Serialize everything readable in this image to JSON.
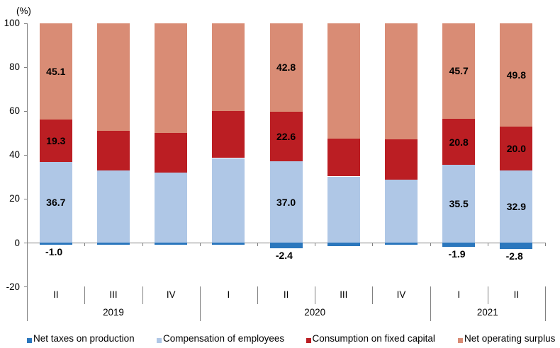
{
  "unit_label": "(%)",
  "colors": {
    "net_taxes": "#2B77BD",
    "compensation": "#AFC7E6",
    "fixed_capital": "#BB1E23",
    "operating_surplus": "#D98C75",
    "axis": "#808080",
    "text": "#000000"
  },
  "chart_data": {
    "type": "bar",
    "stacked": true,
    "title": "",
    "ylabel": "(%)",
    "xlabel": "",
    "ylim": [
      -20,
      100
    ],
    "yticks": [
      -20,
      0,
      20,
      40,
      60,
      80,
      100
    ],
    "legend_position": "bottom",
    "grid": false,
    "year_groups": [
      {
        "label": "2019",
        "quarters": [
          "II",
          "III",
          "IV"
        ]
      },
      {
        "label": "2020",
        "quarters": [
          "I",
          "II",
          "III",
          "IV"
        ]
      },
      {
        "label": "2021",
        "quarters": [
          "I",
          "II"
        ]
      }
    ],
    "categories": [
      "2019 II",
      "2019 III",
      "2019 IV",
      "2020 I",
      "2020 II",
      "2020 III",
      "2020 IV",
      "2021 I",
      "2021 II"
    ],
    "series": [
      {
        "name": "Net taxes on production",
        "color": "#2B77BD",
        "values": [
          -1.0,
          -0.9,
          -1.0,
          -1.1,
          -2.4,
          -1.5,
          -1.1,
          -1.9,
          -2.8
        ]
      },
      {
        "name": "Compensation of employees",
        "color": "#AFC7E6",
        "values": [
          36.7,
          33.0,
          31.9,
          38.5,
          37.0,
          30.1,
          28.8,
          35.5,
          32.9
        ]
      },
      {
        "name": "Consumption on fixed capital",
        "color": "#BB1E23",
        "values": [
          19.3,
          17.8,
          18.0,
          21.3,
          22.6,
          17.1,
          18.2,
          20.8,
          20.0
        ]
      },
      {
        "name": "Net operating surplus",
        "color": "#D98C75",
        "values": [
          45.1,
          50.1,
          51.1,
          41.3,
          42.8,
          54.3,
          54.1,
          45.7,
          49.8
        ]
      }
    ],
    "labeled_bars": [
      0,
      4,
      7,
      8
    ],
    "data_labels": [
      {
        "category": "2019 II",
        "net_taxes": "-1.0",
        "compensation": "36.7",
        "fixed_capital": "19.3",
        "operating_surplus": "45.1"
      },
      {
        "category": "2020 II",
        "net_taxes": "-2.4",
        "compensation": "37.0",
        "fixed_capital": "22.6",
        "operating_surplus": "42.8"
      },
      {
        "category": "2021 I",
        "net_taxes": "-1.9",
        "compensation": "35.5",
        "fixed_capital": "20.8",
        "operating_surplus": "45.7"
      },
      {
        "category": "2021 II",
        "net_taxes": "-2.8",
        "compensation": "32.9",
        "fixed_capital": "20.0",
        "operating_surplus": "49.8"
      }
    ]
  },
  "legend": {
    "items": [
      {
        "label": "Net taxes on production",
        "color": "#2B77BD"
      },
      {
        "label": "Compensation of employees",
        "color": "#AFC7E6"
      },
      {
        "label": "Consumption on fixed capital",
        "color": "#BB1E23"
      },
      {
        "label": "Net operating surplus",
        "color": "#D98C75"
      }
    ]
  }
}
